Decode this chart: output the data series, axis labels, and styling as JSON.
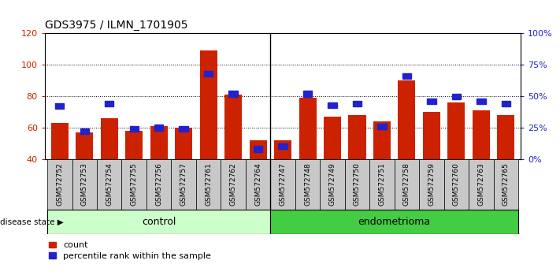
{
  "title": "GDS3975 / ILMN_1701905",
  "categories": [
    "GSM572752",
    "GSM572753",
    "GSM572754",
    "GSM572755",
    "GSM572756",
    "GSM572757",
    "GSM572761",
    "GSM572762",
    "GSM572764",
    "GSM572747",
    "GSM572748",
    "GSM572749",
    "GSM572750",
    "GSM572751",
    "GSM572758",
    "GSM572759",
    "GSM572760",
    "GSM572763",
    "GSM572765"
  ],
  "count_values": [
    63,
    57,
    66,
    58,
    61,
    60,
    109,
    81,
    52,
    52,
    79,
    67,
    68,
    64,
    90,
    70,
    76,
    71,
    68
  ],
  "percentile_values": [
    42,
    22,
    44,
    24,
    25,
    24,
    68,
    52,
    8,
    10,
    52,
    43,
    44,
    26,
    66,
    46,
    50,
    46,
    44
  ],
  "control_count": 9,
  "endometrioma_count": 10,
  "ylim_left": [
    40,
    120
  ],
  "ylim_right": [
    0,
    100
  ],
  "right_ticks": [
    0,
    25,
    50,
    75,
    100
  ],
  "right_tick_labels": [
    "0%",
    "25%",
    "50%",
    "75%",
    "100%"
  ],
  "left_ticks": [
    40,
    60,
    80,
    100,
    120
  ],
  "bar_color": "#cc2200",
  "percentile_color": "#2222cc",
  "control_color": "#ccffcc",
  "endometrioma_color": "#44cc44",
  "label_bg_color": "#c8c8c8",
  "plot_bg": "#ffffff",
  "legend_items": [
    "count",
    "percentile rank within the sample"
  ]
}
